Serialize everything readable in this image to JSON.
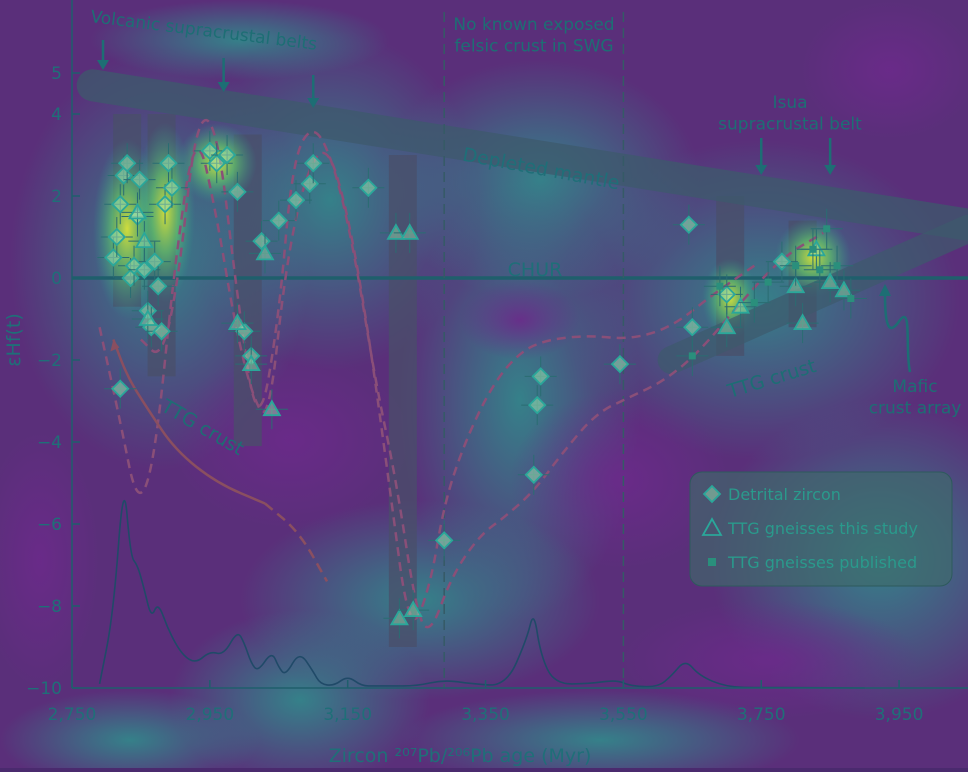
{
  "colors": {
    "background": "#5a2f7a",
    "heat_low": "#6a2c86",
    "heat_mid": "#2e9b8c",
    "heat_high": "#c8df3a",
    "ink": "#1f6f78",
    "annotation": "#1d6e74",
    "curve_dashed": "#8a4f78",
    "bars": "#4a4f6a"
  },
  "chart_data": {
    "type": "scatter",
    "xlabel": "Zircon ²⁰⁷Pb/²⁰⁶Pb age (Myr)",
    "ylabel": "εHf(t)",
    "xlim": [
      2750,
      4050
    ],
    "ylim": [
      -10,
      6
    ],
    "x_ticks": [
      2750,
      2950,
      3150,
      3350,
      3550,
      3750,
      3950
    ],
    "x_tick_labels": [
      "2,750",
      "2,950",
      "3,150",
      "3,350",
      "3,550",
      "3,750",
      "3,950"
    ],
    "y_ticks": [
      -10,
      -8,
      -6,
      -4,
      -2,
      0,
      2,
      4,
      5
    ],
    "y_tick_labels": [
      "−10",
      "−8",
      "−6",
      "−4",
      "−2",
      "0",
      "2",
      "4",
      "5"
    ],
    "chur_label": "CHUR",
    "depleted_mantle": {
      "label": "Depleted mantle",
      "x": [
        2780,
        4050
      ],
      "y": [
        4.7,
        1.3
      ]
    },
    "mafic_array": {
      "x": [
        3620,
        4050
      ],
      "y": [
        -2.0,
        1.2
      ]
    },
    "legend": {
      "position": "lower-right",
      "entries": [
        {
          "label": "Detrital zircon",
          "marker": "diamond"
        },
        {
          "label": "TTG gneisses this study",
          "marker": "triangle"
        },
        {
          "label": "TTG gneisses published",
          "marker": "square"
        }
      ]
    },
    "annotations": [
      {
        "lines": [
          "Volcanic supracrustal belts"
        ],
        "kind": "volcanic"
      },
      {
        "lines": [
          "No known exposed",
          "felsic crust in SWG"
        ],
        "kind": "nocrust"
      },
      {
        "lines": [
          "Isua",
          "supracrustal belt"
        ],
        "kind": "isua"
      },
      {
        "lines": [
          "TTG crust"
        ],
        "kind": "ttg-left"
      },
      {
        "lines": [
          "TTG crust"
        ],
        "kind": "ttg-right"
      },
      {
        "lines": [
          "Mafic",
          "crust array"
        ],
        "kind": "mafic"
      }
    ],
    "dashed_lines_x": [
      3290,
      3550
    ],
    "volcanic_arrows_x": [
      2795,
      2970,
      3100
    ],
    "isua_arrows_x": [
      3750,
      3850
    ],
    "bars": [
      {
        "x": 2830,
        "top": 4.0,
        "bottom": -0.7
      },
      {
        "x": 2880,
        "top": 4.0,
        "bottom": -2.4
      },
      {
        "x": 3005,
        "top": 3.5,
        "bottom": -4.1
      },
      {
        "x": 3230,
        "top": 3.0,
        "bottom": -9.0
      },
      {
        "x": 3705,
        "top": 2.0,
        "bottom": -1.9
      },
      {
        "x": 3810,
        "top": 1.4,
        "bottom": -1.2
      }
    ],
    "series": [
      {
        "name": "Detrital zircon",
        "marker": "diamond",
        "points": [
          [
            2810,
            0.5
          ],
          [
            2815,
            1.0
          ],
          [
            2820,
            1.8
          ],
          [
            2825,
            2.5
          ],
          [
            2830,
            2.8
          ],
          [
            2835,
            0.0
          ],
          [
            2840,
            0.3
          ],
          [
            2845,
            1.5
          ],
          [
            2848,
            2.4
          ],
          [
            2855,
            0.2
          ],
          [
            2860,
            -0.8
          ],
          [
            2865,
            -1.2
          ],
          [
            2870,
            0.4
          ],
          [
            2875,
            -0.2
          ],
          [
            2880,
            -1.3
          ],
          [
            2885,
            1.8
          ],
          [
            2890,
            2.8
          ],
          [
            2895,
            2.2
          ],
          [
            2820,
            -2.7
          ],
          [
            2950,
            3.1
          ],
          [
            2960,
            2.8
          ],
          [
            2975,
            3.0
          ],
          [
            2990,
            2.1
          ],
          [
            3000,
            -1.3
          ],
          [
            3010,
            -1.9
          ],
          [
            3025,
            0.9
          ],
          [
            3050,
            1.4
          ],
          [
            3075,
            1.9
          ],
          [
            3095,
            2.3
          ],
          [
            3100,
            2.8
          ],
          [
            3180,
            2.2
          ],
          [
            3290,
            -6.4
          ],
          [
            3425,
            -3.1
          ],
          [
            3430,
            -2.4
          ],
          [
            3420,
            -4.8
          ],
          [
            3545,
            -2.1
          ],
          [
            3645,
            1.3
          ],
          [
            3650,
            -1.2
          ],
          [
            3700,
            -0.4
          ],
          [
            3780,
            0.4
          ]
        ]
      },
      {
        "name": "TTG gneisses this study",
        "marker": "triangle",
        "points": [
          [
            2845,
            1.6
          ],
          [
            2855,
            0.9
          ],
          [
            2860,
            -1.0
          ],
          [
            2990,
            -1.1
          ],
          [
            3010,
            -2.1
          ],
          [
            3030,
            0.6
          ],
          [
            3040,
            -3.2
          ],
          [
            3220,
            1.1
          ],
          [
            3240,
            1.1
          ],
          [
            3225,
            -8.3
          ],
          [
            3245,
            -8.1
          ],
          [
            3700,
            -1.2
          ],
          [
            3720,
            -0.7
          ],
          [
            3800,
            -0.2
          ],
          [
            3810,
            -1.1
          ],
          [
            3830,
            0.7
          ],
          [
            3850,
            -0.1
          ],
          [
            3870,
            -0.3
          ]
        ]
      },
      {
        "name": "TTG gneisses published",
        "marker": "square",
        "points": [
          [
            3650,
            -1.9
          ],
          [
            3690,
            -0.2
          ],
          [
            3740,
            -0.6
          ],
          [
            3800,
            0.3
          ],
          [
            3825,
            0.7
          ],
          [
            3845,
            1.2
          ],
          [
            3860,
            0.3
          ],
          [
            3880,
            -0.5
          ],
          [
            3760,
            -0.1
          ],
          [
            3835,
            0.2
          ]
        ]
      }
    ],
    "density_curve": {
      "x": [
        2790,
        2810,
        2825,
        2835,
        2845,
        2855,
        2865,
        2875,
        2890,
        2910,
        2930,
        2950,
        2970,
        2990,
        3000,
        3010,
        3020,
        3040,
        3050,
        3060,
        3080,
        3100,
        3110,
        3130,
        3150,
        3170,
        3190,
        3210,
        3250,
        3290,
        3330,
        3380,
        3410,
        3420,
        3430,
        3450,
        3500,
        3540,
        3560,
        3600,
        3620,
        3640,
        3660,
        3700,
        3750,
        3800,
        3900
      ],
      "y": [
        -9.9,
        -8.2,
        -4.8,
        -6.8,
        -7.0,
        -7.6,
        -8.3,
        -7.9,
        -8.6,
        -9.2,
        -9.4,
        -9.1,
        -9.2,
        -8.6,
        -8.9,
        -9.4,
        -9.6,
        -9.1,
        -9.5,
        -9.7,
        -9.1,
        -9.6,
        -9.9,
        -9.95,
        -9.7,
        -9.95,
        -9.95,
        -9.95,
        -9.95,
        -9.8,
        -9.9,
        -9.95,
        -8.8,
        -8.1,
        -9.2,
        -9.9,
        -9.9,
        -9.8,
        -9.95,
        -9.98,
        -9.7,
        -9.3,
        -9.7,
        -9.98,
        -9.99,
        -9.99,
        -10.0
      ]
    },
    "envelope_curves": [
      {
        "x": [
          2790,
          2820,
          2845,
          2870,
          2900,
          2930,
          2960,
          2985,
          3010,
          3035,
          3060,
          3090,
          3120,
          3150,
          3180,
          3210,
          3240,
          3270,
          3290,
          3320,
          3360,
          3400,
          3440,
          3500,
          3560,
          3620,
          3680,
          3740
        ],
        "y": [
          -1.2,
          -3.5,
          -5.6,
          -4.5,
          0.5,
          3.8,
          1.5,
          -1.0,
          -2.8,
          -3.6,
          0.3,
          2.6,
          3.3,
          1.6,
          -1.3,
          -5.0,
          -8.8,
          -7.5,
          -5.5,
          -4.0,
          -2.6,
          -1.8,
          -1.5,
          -1.4,
          -1.5,
          -1.2,
          -0.4,
          0.3
        ]
      },
      {
        "x": [
          2850,
          2880,
          2905,
          2930,
          2960,
          2990,
          3020,
          3050,
          3070,
          3100,
          3130,
          3160,
          3190,
          3220,
          3250,
          3270,
          3300,
          3340,
          3380,
          3420,
          3460,
          3510,
          3560,
          3610,
          3660,
          3720,
          3780,
          3840
        ],
        "y": [
          -1.5,
          -2.0,
          0.0,
          3.9,
          3.8,
          -0.5,
          -3.9,
          -1.0,
          2.9,
          3.8,
          2.8,
          0.6,
          -2.5,
          -4.9,
          -8.2,
          -8.7,
          -7.3,
          -6.3,
          -5.8,
          -5.2,
          -4.3,
          -3.3,
          -2.9,
          -2.5,
          -1.8,
          -0.6,
          0.5,
          1.1
        ]
      }
    ],
    "ttg_left_curve": {
      "x": [
        2810,
        2830,
        2860,
        2900,
        2960,
        3030,
        3080,
        3120
      ],
      "y": [
        -1.5,
        -2.4,
        -3.2,
        -4.2,
        -5.0,
        -5.5,
        -6.2,
        -7.4
      ]
    }
  }
}
